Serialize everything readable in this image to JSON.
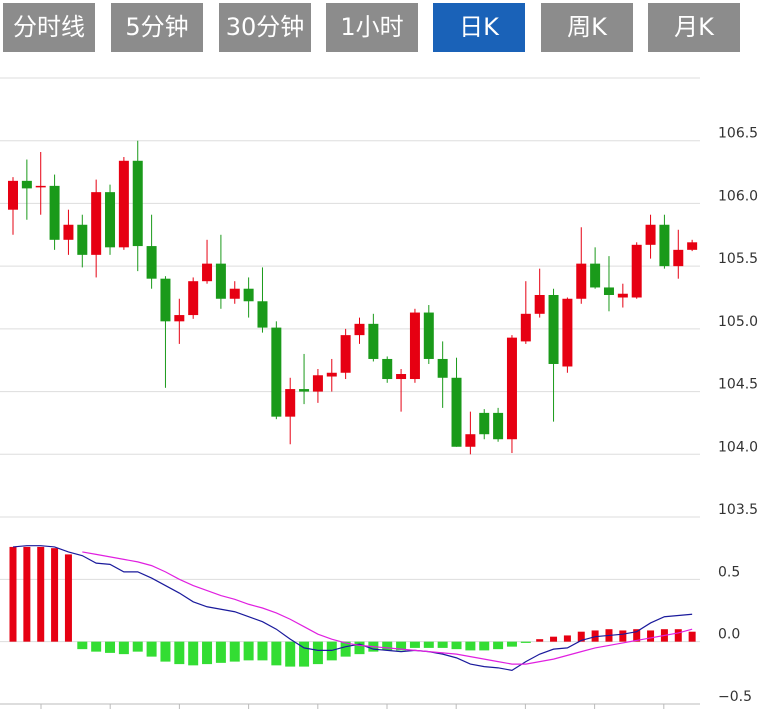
{
  "tabs": [
    "分时线",
    "5分钟",
    "30分钟",
    "1小时",
    "日K",
    "周K",
    "月K"
  ],
  "active_tab": 4,
  "chart_data": [
    {
      "type": "candlestick",
      "up_color": "#e60012",
      "down_color": "#1a9a1a",
      "ylim": [
        103.5,
        107.0
      ],
      "yticks": [
        103.5,
        {
          "value": 104,
          "label": "104.0"
        },
        104.5,
        {
          "value": 105,
          "label": "105.0"
        },
        105.5,
        {
          "value": 106,
          "label": "106.0"
        },
        106.5
      ],
      "grid": true,
      "open": [
        105.95,
        106.18,
        106.13,
        106.14,
        105.71,
        105.83,
        105.59,
        106.09,
        105.65,
        106.34,
        105.66,
        105.4,
        105.06,
        105.11,
        105.38,
        105.52,
        105.24,
        105.32,
        105.22,
        105.01,
        104.3,
        104.52,
        104.5,
        104.62,
        104.65,
        104.95,
        105.04,
        104.76,
        104.6,
        104.6,
        105.13,
        104.76,
        104.61,
        104.06,
        104.33,
        104.33,
        104.12,
        104.9,
        105.12,
        105.27,
        104.7,
        105.24,
        105.52,
        105.33,
        105.25,
        105.25,
        105.67,
        105.83,
        105.5,
        105.63
      ],
      "high": [
        106.21,
        106.35,
        106.41,
        106.23,
        105.95,
        105.91,
        106.19,
        106.15,
        106.37,
        106.5,
        105.91,
        105.42,
        105.24,
        105.41,
        105.71,
        105.75,
        105.38,
        105.41,
        105.49,
        105.06,
        104.61,
        104.8,
        104.68,
        104.76,
        105.0,
        105.09,
        105.12,
        104.78,
        104.68,
        105.16,
        105.19,
        104.9,
        104.77,
        104.34,
        104.36,
        104.37,
        104.95,
        105.38,
        105.48,
        105.32,
        105.25,
        105.81,
        105.65,
        105.58,
        105.36,
        105.69,
        105.91,
        105.91,
        105.79,
        105.71
      ],
      "low": [
        105.75,
        105.87,
        105.91,
        105.63,
        105.59,
        105.49,
        105.41,
        105.59,
        105.63,
        105.46,
        105.32,
        104.53,
        104.88,
        105.08,
        105.36,
        105.16,
        105.2,
        105.09,
        104.97,
        104.28,
        104.08,
        104.4,
        104.41,
        104.5,
        104.6,
        104.88,
        104.74,
        104.57,
        104.34,
        104.57,
        104.72,
        104.37,
        104.06,
        104.0,
        104.12,
        104.1,
        104.01,
        104.88,
        105.09,
        104.26,
        104.65,
        105.2,
        105.32,
        105.14,
        105.17,
        105.24,
        105.56,
        105.48,
        105.4,
        105.62
      ],
      "close": [
        106.18,
        106.12,
        106.14,
        105.71,
        105.83,
        105.59,
        106.09,
        105.65,
        106.34,
        105.66,
        105.4,
        105.06,
        105.11,
        105.38,
        105.52,
        105.24,
        105.32,
        105.22,
        105.01,
        104.3,
        104.52,
        104.5,
        104.63,
        104.65,
        104.95,
        105.04,
        104.76,
        104.6,
        104.64,
        105.13,
        104.76,
        104.61,
        104.06,
        104.16,
        104.16,
        104.12,
        104.93,
        105.12,
        105.27,
        104.72,
        105.24,
        105.52,
        105.33,
        105.27,
        105.28,
        105.67,
        105.83,
        105.5,
        105.63,
        105.69
      ]
    },
    {
      "type": "macd",
      "up_color": "#e60012",
      "down_color": "#33dd33",
      "ylim": [
        -0.5,
        1.0
      ],
      "yticks": [
        {
          "value": -0.5,
          "label": "−0.5"
        },
        {
          "value": 0,
          "label": "0.0"
        },
        0.5
      ],
      "grid": true,
      "values": [
        0.76,
        0.76,
        0.76,
        0.75,
        0.7,
        -0.06,
        -0.08,
        -0.09,
        -0.1,
        -0.08,
        -0.12,
        -0.16,
        -0.18,
        -0.19,
        -0.18,
        -0.17,
        -0.16,
        -0.15,
        -0.15,
        -0.19,
        -0.2,
        -0.2,
        -0.18,
        -0.15,
        -0.12,
        -0.1,
        -0.08,
        -0.07,
        -0.07,
        -0.05,
        -0.05,
        -0.05,
        -0.06,
        -0.07,
        -0.07,
        -0.06,
        -0.04,
        -0.01,
        0.02,
        0.04,
        0.05,
        0.08,
        0.09,
        0.1,
        0.09,
        0.1,
        0.09,
        0.1,
        0.1,
        0.08
      ],
      "series": [
        {
          "color": "#1a1a9c",
          "values": [
            0.76,
            0.77,
            0.77,
            0.76,
            0.72,
            0.69,
            0.63,
            0.62,
            0.56,
            0.56,
            0.51,
            0.45,
            0.39,
            0.32,
            0.28,
            0.26,
            0.24,
            0.2,
            0.16,
            0.1,
            0.02,
            -0.05,
            -0.07,
            -0.07,
            -0.04,
            -0.02,
            -0.06,
            -0.07,
            -0.08,
            -0.07,
            -0.08,
            -0.1,
            -0.13,
            -0.18,
            -0.2,
            -0.21,
            -0.23,
            -0.16,
            -0.1,
            -0.06,
            -0.05,
            0.01,
            0.04,
            0.05,
            0.06,
            0.08,
            0.15,
            0.2,
            0.21,
            0.22
          ]
        },
        {
          "color": "#e020e0",
          "values": [
            null,
            null,
            null,
            null,
            null,
            0.72,
            0.7,
            0.68,
            0.66,
            0.64,
            0.61,
            0.56,
            0.5,
            0.45,
            0.41,
            0.37,
            0.34,
            0.3,
            0.27,
            0.23,
            0.18,
            0.12,
            0.06,
            0.02,
            -0.01,
            -0.03,
            -0.04,
            -0.05,
            -0.06,
            -0.07,
            -0.08,
            -0.09,
            -0.1,
            -0.12,
            -0.14,
            -0.16,
            -0.18,
            -0.18,
            -0.16,
            -0.14,
            -0.11,
            -0.08,
            -0.05,
            -0.03,
            -0.01,
            0.01,
            0.03,
            0.05,
            0.07,
            0.1
          ]
        }
      ]
    }
  ]
}
